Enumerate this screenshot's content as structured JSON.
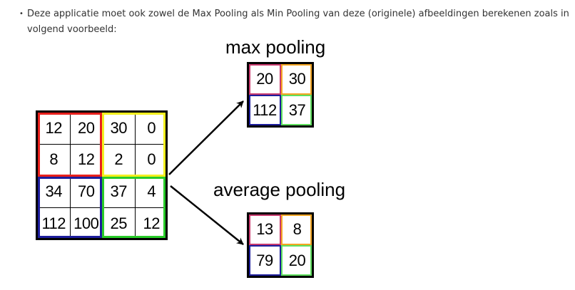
{
  "text": {
    "bullet": "Deze applicatie moet ook zowel de Max Pooling als Min Pooling van deze (originele) afbeeldingen berekenen zoals in volgend voorbeeld:"
  },
  "figure": {
    "max_title": "max pooling",
    "avg_title": "average pooling",
    "input": [
      [
        "12",
        "20",
        "30",
        "0"
      ],
      [
        "8",
        "12",
        "2",
        "0"
      ],
      [
        "34",
        "70",
        "37",
        "4"
      ],
      [
        "112",
        "100",
        "25",
        "12"
      ]
    ],
    "max_output": [
      [
        "20",
        "30"
      ],
      [
        "112",
        "37"
      ]
    ],
    "avg_output": [
      [
        "13",
        "8"
      ],
      [
        "79",
        "20"
      ]
    ],
    "colors": {
      "top_left": "#e8201c",
      "top_right": "#f2ef1e",
      "bottom_left": "#1d1d9c",
      "bottom_right": "#29cc29",
      "small_top_left": "#c93a6e",
      "small_top_right": "#f5a623",
      "small_bottom_left": "#1d1d9c",
      "small_bottom_right": "#5fe05f"
    }
  }
}
